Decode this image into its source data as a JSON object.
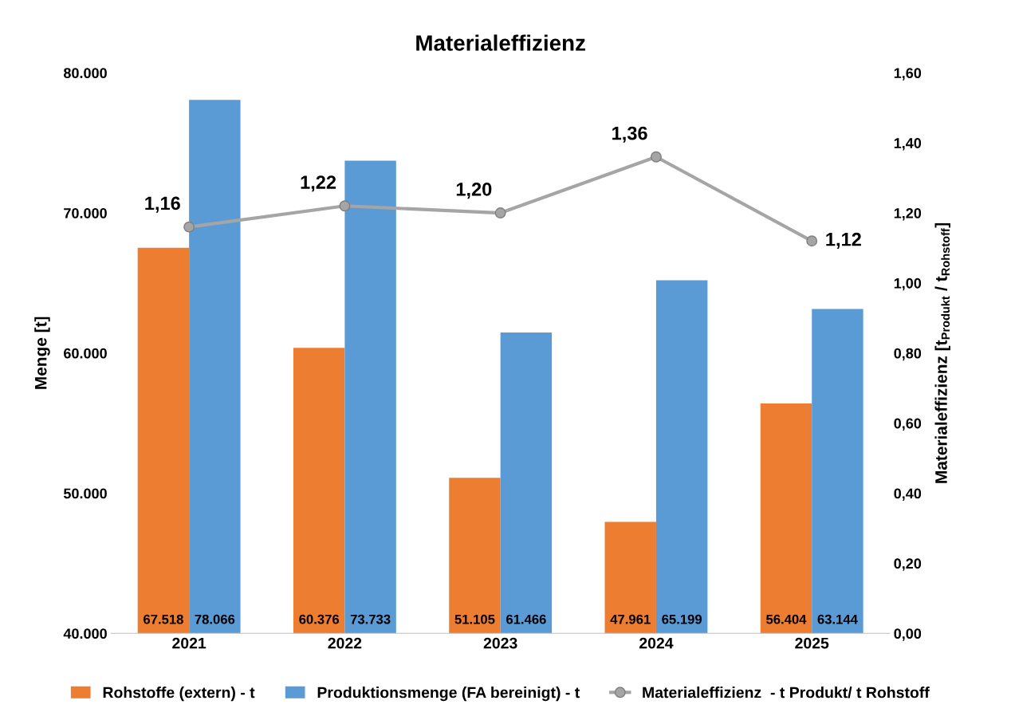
{
  "chart_data": {
    "type": "bar",
    "title": "Materialeffizienz",
    "ylabel": "Menge [t]",
    "y2label": "Materialeffizienz [t$_{Produkt}$ / t$_{Rohstoff}$]",
    "categories": [
      "2021",
      "2022",
      "2023",
      "2024",
      "2025"
    ],
    "series": [
      {
        "name": "Rohstoffe (extern) - t",
        "color": "#ed7d31",
        "values": [
          67518,
          60376,
          51105,
          47961,
          56404
        ],
        "value_labels": [
          "67.518",
          "60.376",
          "51.105",
          "47.961",
          "56.404"
        ]
      },
      {
        "name": "Produktionsmenge (FA bereinigt) - t",
        "color": "#5b9bd5",
        "values": [
          78066,
          73733,
          61466,
          65199,
          63144
        ],
        "value_labels": [
          "78.066",
          "73.733",
          "61.466",
          "65.199",
          "63.144"
        ]
      },
      {
        "name": "Materialeffizienz  - t Produkt/ t Rohstoff",
        "type": "line",
        "axis": "y2",
        "color": "#a5a5a5",
        "marker": "circle",
        "line_style": "solid",
        "values": [
          1.16,
          1.22,
          1.2,
          1.36,
          1.12
        ],
        "value_labels": [
          "1,16",
          "1,22",
          "1,20",
          "1,36",
          "1,12"
        ]
      }
    ],
    "ylim": [
      40000,
      80000
    ],
    "yticks": [
      {
        "value": 40000,
        "label": "40.000"
      },
      {
        "value": 50000,
        "label": "50.000"
      },
      {
        "value": 60000,
        "label": "60.000"
      },
      {
        "value": 70000,
        "label": "70.000"
      },
      {
        "value": 80000,
        "label": "80.000"
      }
    ],
    "y2lim": [
      0,
      1.6
    ],
    "y2ticks": [
      {
        "value": 0,
        "label": "0,00"
      },
      {
        "value": 0.2,
        "label": "0,20"
      },
      {
        "value": 0.4,
        "label": "0,40"
      },
      {
        "value": 0.6,
        "label": "0,60"
      },
      {
        "value": 0.8,
        "label": "0,80"
      },
      {
        "value": 1.0,
        "label": "1,00"
      },
      {
        "value": 1.2,
        "label": "1,20"
      },
      {
        "value": 1.4,
        "label": "1,40"
      },
      {
        "value": 1.6,
        "label": "1,60"
      }
    ],
    "grid": false,
    "legend": "bottom"
  }
}
